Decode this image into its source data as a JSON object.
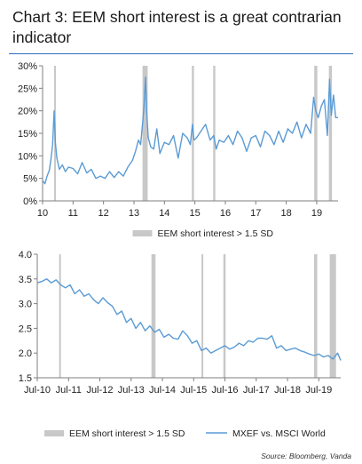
{
  "title": "Chart 3: EEM short interest is a great contrarian indicator",
  "source": "Source: Bloomberg, Vanda",
  "colors": {
    "line": "#5b9bd5",
    "band": "#c8c8c8",
    "axis": "#7f7f7f",
    "rule": "#2f6fbf"
  },
  "chart_data": [
    {
      "type": "line",
      "ylabel": "",
      "xlabel": "",
      "x_ticks": [
        "10",
        "11",
        "12",
        "13",
        "14",
        "15",
        "16",
        "17",
        "18",
        "19"
      ],
      "x_tick_values": [
        2010,
        2011,
        2012,
        2013,
        2014,
        2015,
        2016,
        2017,
        2018,
        2019
      ],
      "y_ticks": [
        "0%",
        "5%",
        "10%",
        "15%",
        "20%",
        "25%",
        "30%"
      ],
      "y_tick_values": [
        0,
        5,
        10,
        15,
        20,
        25,
        30
      ],
      "xlim": [
        2010,
        2019.7
      ],
      "ylim": [
        0,
        30
      ],
      "legend": {
        "placement": "bottom",
        "entries": [
          "EEM short interest > 1.5 SD"
        ]
      },
      "bands": [
        [
          2010.38,
          2010.43
        ],
        [
          2013.28,
          2013.45
        ],
        [
          2014.9,
          2014.97
        ],
        [
          2015.6,
          2015.67
        ],
        [
          2018.92,
          2019.02
        ],
        [
          2019.4,
          2019.5
        ]
      ],
      "series": [
        {
          "name": "",
          "x": [
            2010.0,
            2010.08,
            2010.15,
            2010.22,
            2010.28,
            2010.33,
            2010.38,
            2010.42,
            2010.47,
            2010.55,
            2010.65,
            2010.75,
            2010.85,
            2011.0,
            2011.15,
            2011.3,
            2011.45,
            2011.6,
            2011.75,
            2011.9,
            2012.05,
            2012.2,
            2012.35,
            2012.5,
            2012.65,
            2012.8,
            2012.95,
            2013.05,
            2013.15,
            2013.22,
            2013.28,
            2013.33,
            2013.38,
            2013.42,
            2013.47,
            2013.55,
            2013.65,
            2013.75,
            2013.85,
            2014.0,
            2014.15,
            2014.3,
            2014.45,
            2014.6,
            2014.75,
            2014.85,
            2014.92,
            2014.97,
            2015.05,
            2015.2,
            2015.35,
            2015.5,
            2015.62,
            2015.7,
            2015.8,
            2015.95,
            2016.1,
            2016.25,
            2016.4,
            2016.55,
            2016.7,
            2016.85,
            2017.0,
            2017.15,
            2017.3,
            2017.45,
            2017.6,
            2017.75,
            2017.9,
            2018.05,
            2018.2,
            2018.35,
            2018.5,
            2018.65,
            2018.8,
            2018.9,
            2018.97,
            2019.05,
            2019.15,
            2019.25,
            2019.35,
            2019.42,
            2019.48,
            2019.55,
            2019.62,
            2019.7
          ],
          "y": [
            4.5,
            3.8,
            5.5,
            6.8,
            9.5,
            12.5,
            20.0,
            13.0,
            9.5,
            7.0,
            8.0,
            6.5,
            7.5,
            7.2,
            6.0,
            8.5,
            6.2,
            7.0,
            5.0,
            5.5,
            5.0,
            6.5,
            5.2,
            6.5,
            5.5,
            7.5,
            9.0,
            11.0,
            13.5,
            12.5,
            17.0,
            21.0,
            27.5,
            19.5,
            14.0,
            12.0,
            11.5,
            16.0,
            10.5,
            13.0,
            12.5,
            14.5,
            9.5,
            15.0,
            14.0,
            12.5,
            17.0,
            13.5,
            14.0,
            15.5,
            17.0,
            13.5,
            14.5,
            11.5,
            13.5,
            13.0,
            14.5,
            12.5,
            15.5,
            14.0,
            11.0,
            14.0,
            14.5,
            12.0,
            15.5,
            14.5,
            12.5,
            15.5,
            13.0,
            16.0,
            15.0,
            17.5,
            14.0,
            17.0,
            15.0,
            23.0,
            20.0,
            18.5,
            21.0,
            22.5,
            14.5,
            27.0,
            19.0,
            23.5,
            18.5,
            18.5
          ]
        }
      ]
    },
    {
      "type": "line",
      "ylabel": "",
      "xlabel": "",
      "x_ticks": [
        "Jul-10",
        "Jul-11",
        "Jul-12",
        "Jul-13",
        "Jul-14",
        "Jul-15",
        "Jul-16",
        "Jul-17",
        "Jul-18",
        "Jul-19"
      ],
      "x_tick_values": [
        2010.5,
        2011.5,
        2012.5,
        2013.5,
        2014.5,
        2015.5,
        2016.5,
        2017.5,
        2018.5,
        2019.5
      ],
      "y_ticks": [
        "1.5",
        "2.0",
        "2.5",
        "3.0",
        "3.5",
        "4.0"
      ],
      "y_tick_values": [
        1.5,
        2.0,
        2.5,
        3.0,
        3.5,
        4.0
      ],
      "xlim": [
        2010.5,
        2020.2
      ],
      "ylim": [
        1.5,
        4.0
      ],
      "legend": {
        "placement": "bottom",
        "entries": [
          "EEM short interest > 1.5 SD",
          "MXEF vs. MSCI World"
        ]
      },
      "bands": [
        [
          2011.2,
          2011.25
        ],
        [
          2014.15,
          2014.28
        ],
        [
          2015.75,
          2015.8
        ],
        [
          2016.45,
          2016.52
        ],
        [
          2019.35,
          2019.45
        ],
        [
          2019.85,
          2020.05
        ]
      ],
      "series": [
        {
          "name": "MXEF vs. MSCI World",
          "x": [
            2010.5,
            2010.65,
            2010.8,
            2010.95,
            2011.1,
            2011.25,
            2011.4,
            2011.55,
            2011.7,
            2011.85,
            2012.0,
            2012.15,
            2012.3,
            2012.45,
            2012.6,
            2012.75,
            2012.9,
            2013.05,
            2013.2,
            2013.35,
            2013.5,
            2013.65,
            2013.8,
            2013.95,
            2014.1,
            2014.25,
            2014.4,
            2014.55,
            2014.7,
            2014.85,
            2015.0,
            2015.15,
            2015.3,
            2015.45,
            2015.6,
            2015.75,
            2015.9,
            2016.05,
            2016.2,
            2016.35,
            2016.5,
            2016.65,
            2016.8,
            2016.95,
            2017.1,
            2017.25,
            2017.4,
            2017.55,
            2017.7,
            2017.85,
            2018.0,
            2018.15,
            2018.3,
            2018.45,
            2018.6,
            2018.75,
            2018.9,
            2019.05,
            2019.2,
            2019.35,
            2019.5,
            2019.65,
            2019.8,
            2019.95,
            2020.1,
            2020.2
          ],
          "y": [
            3.42,
            3.45,
            3.5,
            3.42,
            3.48,
            3.38,
            3.32,
            3.38,
            3.2,
            3.28,
            3.15,
            3.2,
            3.08,
            3.0,
            3.12,
            3.02,
            2.95,
            2.78,
            2.85,
            2.62,
            2.7,
            2.5,
            2.62,
            2.45,
            2.55,
            2.42,
            2.48,
            2.32,
            2.38,
            2.3,
            2.28,
            2.45,
            2.35,
            2.2,
            2.25,
            2.05,
            2.1,
            2.0,
            2.05,
            2.1,
            2.15,
            2.08,
            2.12,
            2.2,
            2.15,
            2.25,
            2.22,
            2.3,
            2.3,
            2.28,
            2.35,
            2.1,
            2.15,
            2.05,
            2.08,
            2.1,
            2.05,
            2.02,
            1.98,
            1.95,
            1.98,
            1.92,
            1.95,
            1.88,
            2.0,
            1.85
          ]
        }
      ]
    }
  ]
}
